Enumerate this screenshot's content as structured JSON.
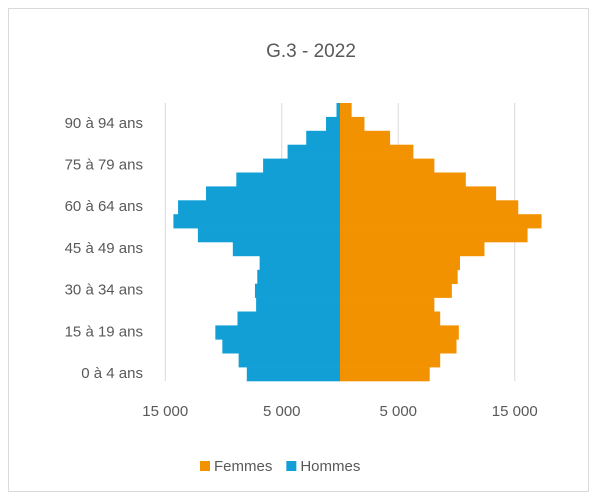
{
  "chart_data": {
    "type": "pyramid",
    "title": "G.3 - 2022",
    "categories": [
      "0 à 4 ans",
      null,
      null,
      "15 à 19 ans",
      null,
      null,
      "30 à 34 ans",
      null,
      null,
      "45 à 49 ans",
      null,
      null,
      "60 à 64 ans",
      null,
      null,
      "75 à 79 ans",
      null,
      null,
      "90 à 94 ans",
      null
    ],
    "series": [
      {
        "name": "Femmes",
        "color": "#f39200",
        "values": [
          7700,
          8600,
          10000,
          10200,
          8600,
          8100,
          9600,
          10100,
          10300,
          12400,
          16100,
          17300,
          15300,
          13400,
          10800,
          8100,
          6300,
          4300,
          2100,
          1000
        ]
      },
      {
        "name": "Hommes",
        "color": "#119fd6",
        "values": [
          -8000,
          -8700,
          -10100,
          -10700,
          -8800,
          -7200,
          -7300,
          -7100,
          -6900,
          -9200,
          -12200,
          -14300,
          -13900,
          -11500,
          -8900,
          -6600,
          -4500,
          -2900,
          -1200,
          -300
        ]
      }
    ],
    "xlim": [
      -20000,
      20000
    ],
    "xticks": [
      {
        "value": -15000,
        "label": "15 000"
      },
      {
        "value": -5000,
        "label": "5 000"
      },
      {
        "value": 5000,
        "label": "5 000"
      },
      {
        "value": 15000,
        "label": "15 000"
      }
    ],
    "grid": true,
    "legend": "bottom"
  }
}
